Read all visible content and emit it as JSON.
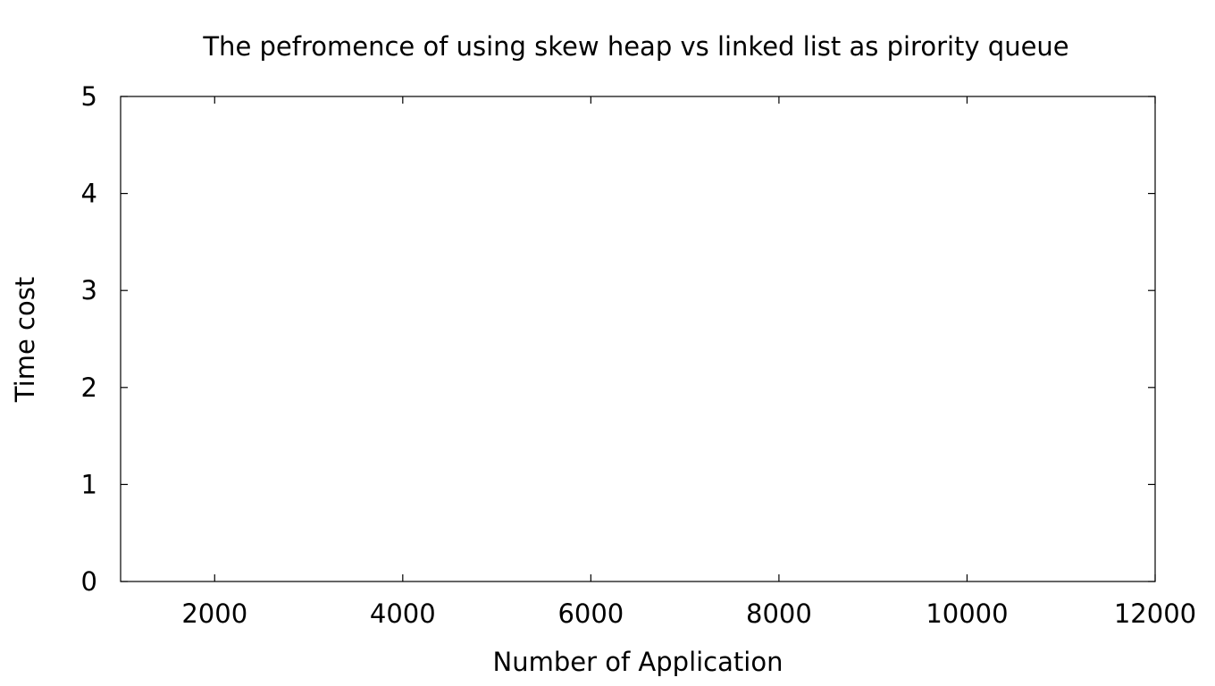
{
  "chart_data": {
    "type": "line",
    "title": "The pefromence of using skew heap vs linked list as pirority queue",
    "xlabel": "Number of Application",
    "ylabel": "Time cost",
    "xlim": [
      1000,
      12000
    ],
    "ylim": [
      0,
      5
    ],
    "x_ticks": [
      2000,
      4000,
      6000,
      8000,
      10000,
      12000
    ],
    "y_ticks": [
      0,
      1,
      2,
      3,
      4,
      5
    ],
    "x_tick_labels": [
      "2000",
      "4000",
      "6000",
      "8000",
      "10000",
      "12000"
    ],
    "y_tick_labels": [
      "0",
      "1",
      "2",
      "3",
      "4",
      "5"
    ],
    "grid": false,
    "series": []
  }
}
